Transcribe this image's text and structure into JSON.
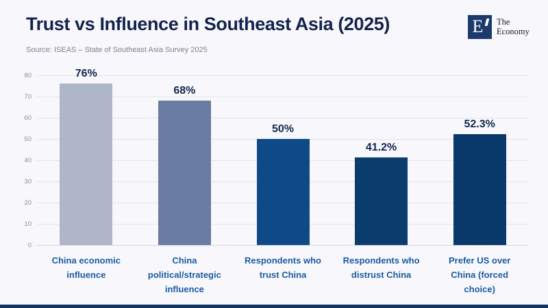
{
  "header": {
    "title": "Trust vs Influence in Southeast Asia (2025)",
    "source": "Source: ISEAS – State of Southeast Asia Survey 2025",
    "logo": {
      "monogram": "E",
      "name_line1": "The",
      "name_line2": "Economy"
    }
  },
  "colors": {
    "background": "#f8f8fc",
    "title_text": "#13234c",
    "source_text": "#7f7f8b",
    "tick_text": "#8b8b95",
    "gridline": "#e3e3ea",
    "value_label_text": "#12284e",
    "category_label_text": "#1b5ba3",
    "logo_navy": "#1e3a6d",
    "footer_accent": "#0e3766"
  },
  "chart_data": {
    "type": "bar",
    "title": "Trust vs Influence in Southeast Asia (2025)",
    "source": "ISEAS – State of Southeast Asia Survey 2025",
    "categories": [
      "China economic influence",
      "China political/strategic influence",
      "Respondents who trust China",
      "Respondents who distrust China",
      "Prefer US over China (forced choice)"
    ],
    "category_lines": [
      [
        "China economic",
        "influence"
      ],
      [
        "China",
        "political/strategic",
        "influence"
      ],
      [
        "Respondents who",
        "trust China"
      ],
      [
        "Respondents who",
        "distrust China"
      ],
      [
        "Prefer US over",
        "China (forced",
        "choice)"
      ]
    ],
    "values": [
      76,
      68,
      50,
      41.2,
      52.3
    ],
    "value_labels": [
      "76%",
      "68%",
      "50%",
      "41.2%",
      "52.3%"
    ],
    "bar_colors": [
      "#b0b6c9",
      "#6a7ba1",
      "#0d4a87",
      "#0a3c6e",
      "#09386a"
    ],
    "xlabel": "",
    "ylabel": "",
    "ylim": [
      0,
      80
    ],
    "yticks": [
      0,
      10,
      20,
      30,
      40,
      50,
      60,
      70,
      80
    ],
    "grid": true,
    "legend": false
  }
}
